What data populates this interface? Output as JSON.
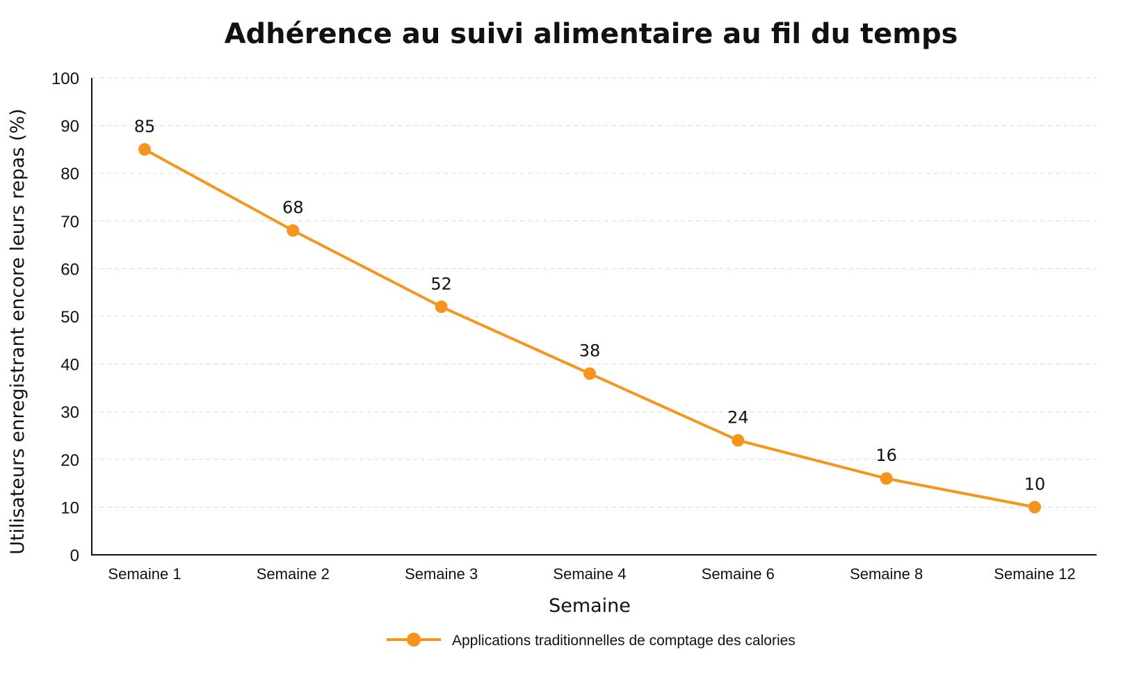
{
  "chart_data": {
    "type": "line",
    "title": "Adhérence au suivi alimentaire au fil du temps",
    "xlabel": "Semaine",
    "ylabel": "Utilisateurs enregistrant encore leurs repas (%)",
    "categories": [
      "Semaine 1",
      "Semaine 2",
      "Semaine 3",
      "Semaine 4",
      "Semaine 6",
      "Semaine 8",
      "Semaine 12"
    ],
    "ylim": [
      0,
      100
    ],
    "yticks": [
      0,
      10,
      20,
      30,
      40,
      50,
      60,
      70,
      80,
      90,
      100
    ],
    "grid": true,
    "legend_position": "bottom-center",
    "series": [
      {
        "name": "Applications traditionnelles de comptage des calories",
        "values": [
          85,
          68,
          52,
          38,
          24,
          16,
          10
        ],
        "color": "#f7941d"
      }
    ]
  }
}
